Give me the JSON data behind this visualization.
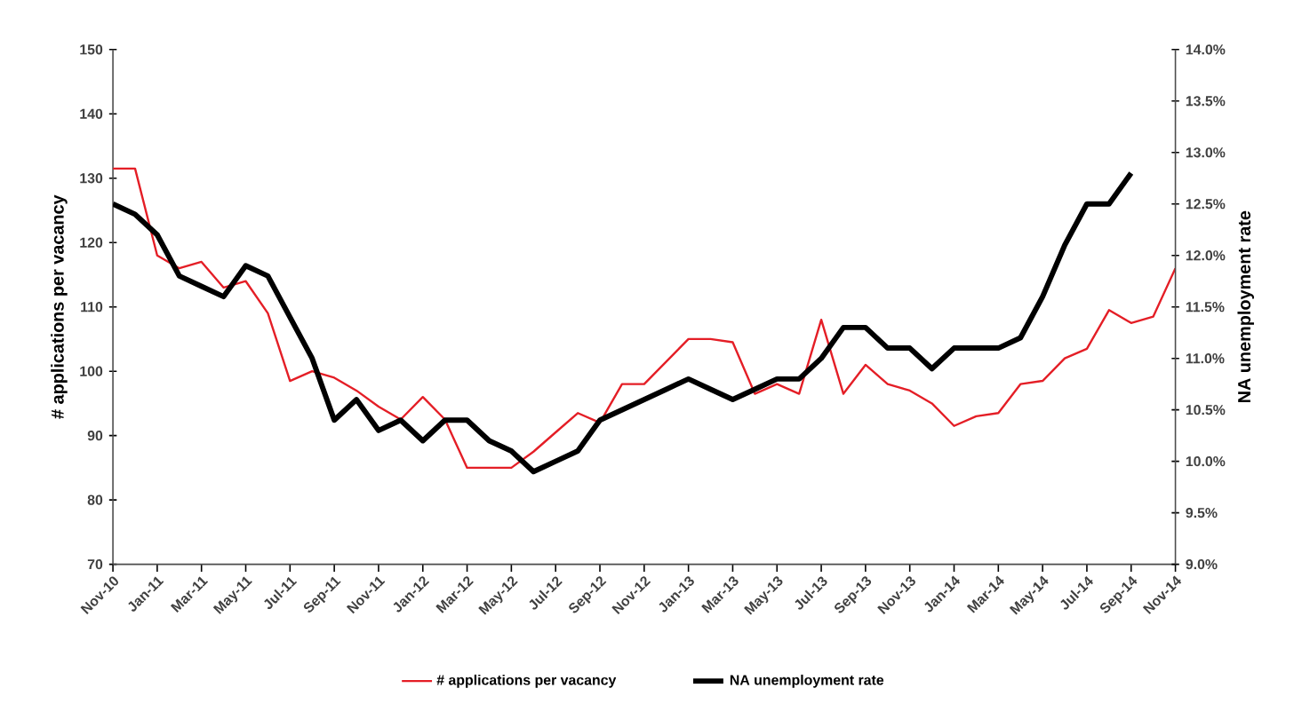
{
  "chart_data": {
    "type": "line",
    "categories": [
      "Nov-10",
      null,
      "Jan-11",
      null,
      "Mar-11",
      null,
      "May-11",
      null,
      "Jul-11",
      null,
      "Sep-11",
      null,
      "Nov-11",
      null,
      "Jan-12",
      null,
      "Mar-12",
      null,
      "May-12",
      null,
      "Jul-12",
      null,
      "Sep-12",
      null,
      "Nov-12",
      null,
      "Jan-13",
      null,
      "Mar-13",
      null,
      "May-13",
      null,
      "Jul-13",
      null,
      "Sep-13",
      null,
      "Nov-13",
      null,
      "Jan-14",
      null,
      "Mar-14",
      null,
      "May-14",
      null,
      "Jul-14",
      null,
      "Sep-14",
      null,
      "Nov-14"
    ],
    "series": [
      {
        "name": "# applications per vacancy",
        "color": "#e41e26",
        "values": [
          131.5,
          131.5,
          118,
          116,
          117,
          113,
          114,
          109,
          98.5,
          100,
          99,
          97,
          94.5,
          92.5,
          96,
          92.5,
          85,
          85,
          85,
          87.5,
          90.5,
          93.5,
          92,
          98,
          98,
          101.5,
          105,
          105,
          104.5,
          96.5,
          98,
          96.5,
          108,
          96.5,
          101,
          98,
          97,
          95,
          91.5,
          93,
          93.5,
          98,
          98.5,
          102,
          103.5,
          109.5,
          107.5,
          108.5,
          116
        ]
      },
      {
        "name": "NA unemployment rate",
        "color": "#000000",
        "axis": "y2",
        "values": [
          12.5,
          12.4,
          12.2,
          11.8,
          11.7,
          11.6,
          11.9,
          11.8,
          11.4,
          11.0,
          10.4,
          10.6,
          10.3,
          10.4,
          10.2,
          10.4,
          10.4,
          10.2,
          10.1,
          9.9,
          10.0,
          10.1,
          10.4,
          10.5,
          10.6,
          10.7,
          10.8,
          10.7,
          10.6,
          10.7,
          10.8,
          10.8,
          11.0,
          11.3,
          11.3,
          11.1,
          11.1,
          10.9,
          11.1,
          11.1,
          11.1,
          11.2,
          11.6,
          12.1,
          12.5,
          12.5,
          12.8,
          null,
          null
        ]
      }
    ],
    "ylabel": "# applications per vacancy",
    "y2label": "NA unemployment rate",
    "ylim": [
      70,
      150
    ],
    "yticks": [
      70,
      80,
      90,
      100,
      110,
      120,
      130,
      140,
      150
    ],
    "y2lim": [
      9,
      14
    ],
    "y2ticks": [
      {
        "value": 9,
        "label": "9.0%"
      },
      {
        "value": 9.5,
        "label": "9.5%"
      },
      {
        "value": 10,
        "label": "10.0%"
      },
      {
        "value": 10.5,
        "label": "10.5%"
      },
      {
        "value": 11,
        "label": "11.0%"
      },
      {
        "value": 11.5,
        "label": "11.5%"
      },
      {
        "value": 12,
        "label": "12.0%"
      },
      {
        "value": 12.5,
        "label": "12.5%"
      },
      {
        "value": 13,
        "label": "13.0%"
      },
      {
        "value": 13.5,
        "label": "13.5%"
      },
      {
        "value": 14,
        "label": "14.0%"
      }
    ],
    "grid": false,
    "legend": "bottom"
  }
}
